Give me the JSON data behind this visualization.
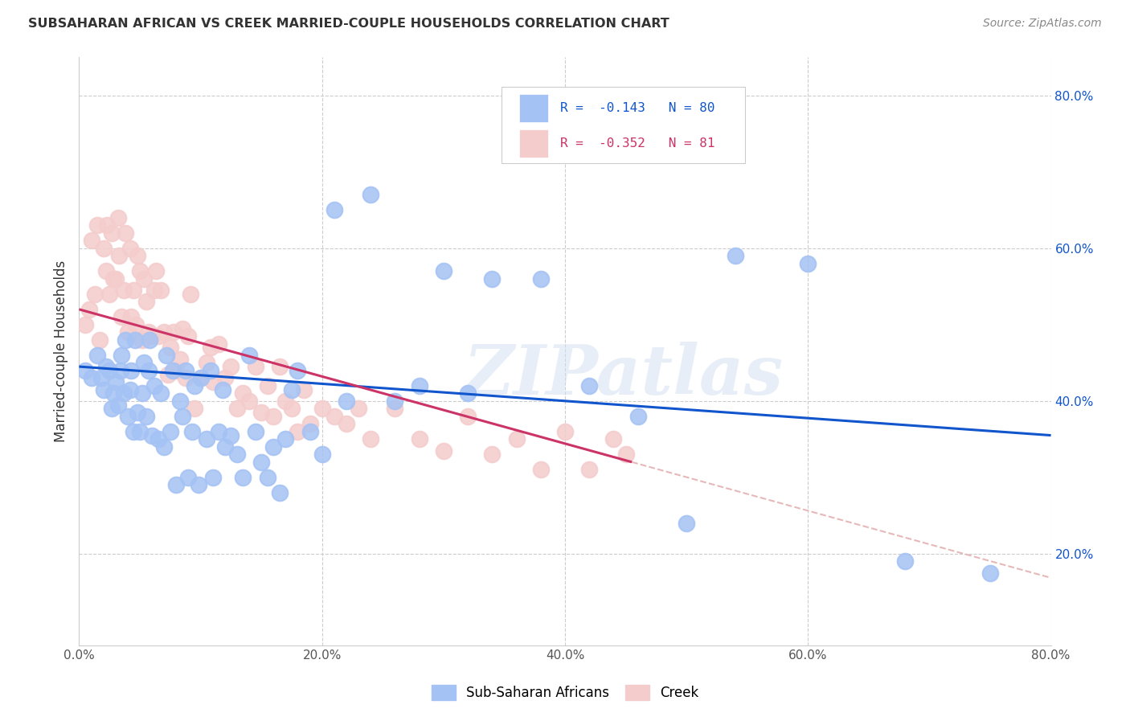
{
  "title": "SUBSAHARAN AFRICAN VS CREEK MARRIED-COUPLE HOUSEHOLDS CORRELATION CHART",
  "source": "Source: ZipAtlas.com",
  "ylabel": "Married-couple Households",
  "watermark": "ZIPatlas",
  "xlim": [
    0.0,
    0.8
  ],
  "ylim": [
    0.08,
    0.85
  ],
  "xticks": [
    0.0,
    0.2,
    0.4,
    0.6,
    0.8
  ],
  "yticks": [
    0.2,
    0.4,
    0.6,
    0.8
  ],
  "ytick_labels": [
    "20.0%",
    "40.0%",
    "60.0%",
    "80.0%"
  ],
  "xtick_labels": [
    "0.0%",
    "20.0%",
    "40.0%",
    "60.0%",
    "80.0%"
  ],
  "blue_R": "-0.143",
  "blue_N": "80",
  "pink_R": "-0.352",
  "pink_N": "81",
  "blue_color": "#a4c2f4",
  "pink_color": "#f4cccc",
  "blue_line_color": "#1155cc",
  "pink_line_color": "#cc3366",
  "pink_dash_color": "#e6b8b8",
  "background_color": "#ffffff",
  "grid_color": "#cccccc",
  "legend_label_blue": "Sub-Saharan Africans",
  "legend_label_pink": "Creek",
  "blue_x": [
    0.005,
    0.01,
    0.015,
    0.018,
    0.02,
    0.022,
    0.025,
    0.027,
    0.028,
    0.03,
    0.032,
    0.034,
    0.035,
    0.037,
    0.038,
    0.04,
    0.042,
    0.043,
    0.045,
    0.046,
    0.048,
    0.05,
    0.052,
    0.053,
    0.055,
    0.057,
    0.058,
    0.06,
    0.062,
    0.065,
    0.067,
    0.07,
    0.072,
    0.075,
    0.077,
    0.08,
    0.083,
    0.085,
    0.088,
    0.09,
    0.093,
    0.095,
    0.098,
    0.1,
    0.105,
    0.108,
    0.11,
    0.115,
    0.118,
    0.12,
    0.125,
    0.13,
    0.135,
    0.14,
    0.145,
    0.15,
    0.155,
    0.16,
    0.165,
    0.17,
    0.175,
    0.18,
    0.19,
    0.2,
    0.21,
    0.22,
    0.24,
    0.26,
    0.28,
    0.3,
    0.32,
    0.34,
    0.38,
    0.42,
    0.46,
    0.5,
    0.54,
    0.6,
    0.68,
    0.75
  ],
  "blue_y": [
    0.44,
    0.43,
    0.46,
    0.43,
    0.415,
    0.445,
    0.44,
    0.39,
    0.41,
    0.425,
    0.395,
    0.44,
    0.46,
    0.41,
    0.48,
    0.38,
    0.415,
    0.44,
    0.36,
    0.48,
    0.385,
    0.36,
    0.41,
    0.45,
    0.38,
    0.44,
    0.48,
    0.355,
    0.42,
    0.35,
    0.41,
    0.34,
    0.46,
    0.36,
    0.44,
    0.29,
    0.4,
    0.38,
    0.44,
    0.3,
    0.36,
    0.42,
    0.29,
    0.43,
    0.35,
    0.44,
    0.3,
    0.36,
    0.415,
    0.34,
    0.355,
    0.33,
    0.3,
    0.46,
    0.36,
    0.32,
    0.3,
    0.34,
    0.28,
    0.35,
    0.415,
    0.44,
    0.36,
    0.33,
    0.65,
    0.4,
    0.67,
    0.4,
    0.42,
    0.57,
    0.41,
    0.56,
    0.56,
    0.42,
    0.38,
    0.24,
    0.59,
    0.58,
    0.19,
    0.175
  ],
  "pink_x": [
    0.005,
    0.008,
    0.01,
    0.013,
    0.015,
    0.017,
    0.02,
    0.022,
    0.023,
    0.025,
    0.027,
    0.028,
    0.03,
    0.032,
    0.033,
    0.035,
    0.037,
    0.038,
    0.04,
    0.042,
    0.043,
    0.045,
    0.047,
    0.048,
    0.05,
    0.052,
    0.053,
    0.055,
    0.057,
    0.06,
    0.062,
    0.063,
    0.065,
    0.067,
    0.07,
    0.073,
    0.075,
    0.078,
    0.08,
    0.083,
    0.085,
    0.088,
    0.09,
    0.092,
    0.095,
    0.1,
    0.105,
    0.108,
    0.11,
    0.115,
    0.12,
    0.125,
    0.13,
    0.135,
    0.14,
    0.145,
    0.15,
    0.155,
    0.16,
    0.165,
    0.17,
    0.175,
    0.18,
    0.185,
    0.19,
    0.2,
    0.21,
    0.22,
    0.23,
    0.24,
    0.26,
    0.28,
    0.3,
    0.32,
    0.34,
    0.36,
    0.38,
    0.4,
    0.42,
    0.44,
    0.45
  ],
  "pink_y": [
    0.5,
    0.52,
    0.61,
    0.54,
    0.63,
    0.48,
    0.6,
    0.57,
    0.63,
    0.54,
    0.62,
    0.56,
    0.56,
    0.64,
    0.59,
    0.51,
    0.545,
    0.62,
    0.49,
    0.6,
    0.51,
    0.545,
    0.5,
    0.59,
    0.57,
    0.48,
    0.56,
    0.53,
    0.49,
    0.485,
    0.545,
    0.57,
    0.485,
    0.545,
    0.49,
    0.435,
    0.47,
    0.49,
    0.44,
    0.455,
    0.495,
    0.43,
    0.485,
    0.54,
    0.39,
    0.43,
    0.45,
    0.47,
    0.425,
    0.475,
    0.43,
    0.445,
    0.39,
    0.41,
    0.4,
    0.445,
    0.385,
    0.42,
    0.38,
    0.445,
    0.4,
    0.39,
    0.36,
    0.415,
    0.37,
    0.39,
    0.38,
    0.37,
    0.39,
    0.35,
    0.39,
    0.35,
    0.335,
    0.38,
    0.33,
    0.35,
    0.31,
    0.36,
    0.31,
    0.35,
    0.33
  ]
}
